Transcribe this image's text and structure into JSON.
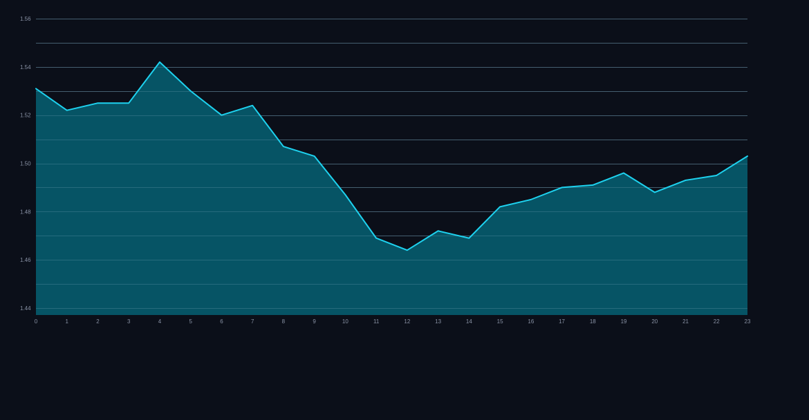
{
  "colors": {
    "background": "#0b0f19",
    "grid": "#3a4556",
    "line": "#1ed2ef",
    "area": "#075a6b",
    "tick_text": "#8a93a6"
  },
  "chart_data": {
    "type": "area",
    "title": "",
    "xlabel": "",
    "ylabel": "",
    "x": [
      0,
      1,
      2,
      3,
      4,
      5,
      6,
      7,
      8,
      9,
      10,
      11,
      12,
      13,
      14,
      15,
      16,
      17,
      18,
      19,
      20,
      21,
      22,
      23
    ],
    "series": [
      {
        "values": [
          1.531,
          1.522,
          1.525,
          1.525,
          1.542,
          1.53,
          1.52,
          1.524,
          1.507,
          1.503,
          1.487,
          1.469,
          1.464,
          1.472,
          1.469,
          1.482,
          1.485,
          1.49,
          1.491,
          1.496,
          1.488,
          1.493,
          1.495,
          1.503
        ]
      }
    ],
    "xlim": [
      0,
      23
    ],
    "ylim": [
      1.437,
      1.56
    ],
    "y_ticks": [
      "1.44",
      "1.46",
      "1.48",
      "1.50",
      "1.52",
      "1.54",
      "1.56"
    ],
    "x_ticks": [
      "0",
      "1",
      "2",
      "3",
      "4",
      "5",
      "6",
      "7",
      "8",
      "9",
      "10",
      "11",
      "12",
      "13",
      "14",
      "15",
      "16",
      "17",
      "18",
      "19",
      "20",
      "21",
      "22",
      "23"
    ],
    "grid": true,
    "legend": false
  }
}
